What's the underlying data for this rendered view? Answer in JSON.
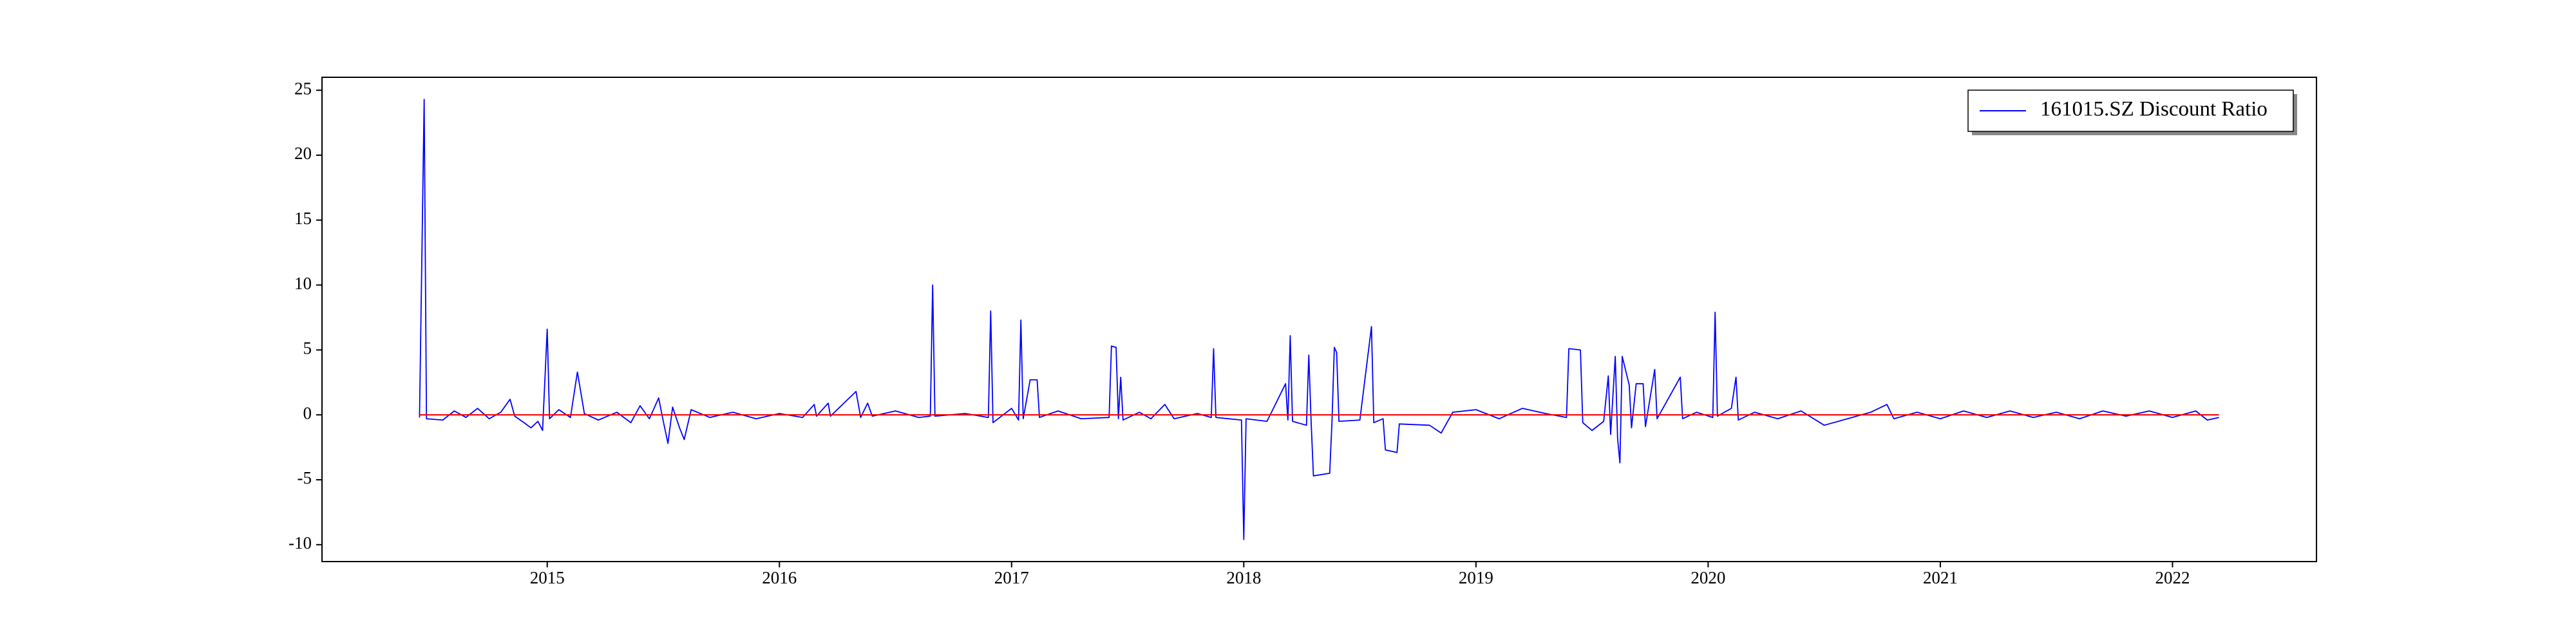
{
  "chart_data": {
    "type": "line",
    "x": [
      2014.45,
      2014.47,
      2014.48,
      2014.55,
      2014.6,
      2014.65,
      2014.7,
      2014.75,
      2014.8,
      2014.84,
      2014.86,
      2014.9,
      2014.93,
      2014.96,
      2014.98,
      2015.0,
      2015.01,
      2015.05,
      2015.1,
      2015.13,
      2015.16,
      2015.22,
      2015.3,
      2015.36,
      2015.4,
      2015.44,
      2015.48,
      2015.5,
      2015.52,
      2015.54,
      2015.57,
      2015.59,
      2015.62,
      2015.7,
      2015.8,
      2015.9,
      2016.0,
      2016.1,
      2016.15,
      2016.16,
      2016.21,
      2016.22,
      2016.33,
      2016.35,
      2016.38,
      2016.4,
      2016.5,
      2016.6,
      2016.65,
      2016.66,
      2016.67,
      2016.8,
      2016.9,
      2016.91,
      2016.92,
      2017.0,
      2017.03,
      2017.04,
      2017.05,
      2017.08,
      2017.11,
      2017.12,
      2017.2,
      2017.3,
      2017.42,
      2017.43,
      2017.45,
      2017.46,
      2017.47,
      2017.48,
      2017.55,
      2017.6,
      2017.66,
      2017.7,
      2017.8,
      2017.86,
      2017.87,
      2017.88,
      2017.99,
      2018.0,
      2018.01,
      2018.1,
      2018.18,
      2018.19,
      2018.2,
      2018.21,
      2018.27,
      2018.28,
      2018.29,
      2018.3,
      2018.37,
      2018.38,
      2018.39,
      2018.4,
      2018.41,
      2018.5,
      2018.55,
      2018.56,
      2018.6,
      2018.61,
      2018.66,
      2018.67,
      2018.8,
      2018.85,
      2018.9,
      2019.0,
      2019.1,
      2019.2,
      2019.3,
      2019.39,
      2019.4,
      2019.45,
      2019.46,
      2019.5,
      2019.55,
      2019.57,
      2019.58,
      2019.6,
      2019.61,
      2019.62,
      2019.63,
      2019.66,
      2019.67,
      2019.69,
      2019.72,
      2019.73,
      2019.77,
      2019.78,
      2019.88,
      2019.89,
      2019.95,
      2020.02,
      2020.03,
      2020.04,
      2020.1,
      2020.12,
      2020.13,
      2020.2,
      2020.3,
      2020.4,
      2020.5,
      2020.6,
      2020.7,
      2020.77,
      2020.8,
      2020.9,
      2021.0,
      2021.1,
      2021.2,
      2021.3,
      2021.4,
      2021.5,
      2021.6,
      2021.7,
      2021.8,
      2021.9,
      2022.0,
      2022.1,
      2022.15,
      2022.2
    ],
    "series": [
      {
        "name": "161015.SZ Discount Ratio",
        "color": "#0000ff",
        "values": [
          -0.2,
          24.3,
          -0.3,
          -0.4,
          0.3,
          -0.2,
          0.5,
          -0.3,
          0.2,
          1.2,
          -0.1,
          -0.6,
          -1.0,
          -0.5,
          -1.2,
          6.6,
          -0.3,
          0.4,
          -0.2,
          3.3,
          0.1,
          -0.4,
          0.2,
          -0.6,
          0.7,
          -0.3,
          1.3,
          -0.5,
          -2.2,
          0.6,
          -1.0,
          -1.9,
          0.4,
          -0.2,
          0.2,
          -0.3,
          0.1,
          -0.2,
          0.8,
          -0.1,
          0.9,
          -0.1,
          1.8,
          -0.2,
          0.9,
          -0.1,
          0.3,
          -0.2,
          -0.1,
          10.0,
          -0.1,
          0.1,
          -0.2,
          8.0,
          -0.6,
          0.5,
          -0.4,
          7.3,
          -0.3,
          2.7,
          2.7,
          -0.2,
          0.3,
          -0.3,
          -0.2,
          5.3,
          5.2,
          -0.3,
          2.9,
          -0.4,
          0.2,
          -0.3,
          0.8,
          -0.3,
          0.1,
          -0.2,
          5.1,
          -0.2,
          -0.4,
          -9.6,
          -0.3,
          -0.5,
          2.4,
          -0.4,
          6.1,
          -0.5,
          -0.8,
          4.6,
          -0.5,
          -4.7,
          -4.5,
          -0.5,
          5.2,
          4.8,
          -0.5,
          -0.4,
          6.8,
          -0.6,
          -0.3,
          -2.7,
          -2.9,
          -0.7,
          -0.8,
          -1.4,
          0.2,
          0.4,
          -0.3,
          0.5,
          0.1,
          -0.2,
          5.1,
          5.0,
          -0.6,
          -1.2,
          -0.5,
          3.0,
          -1.5,
          4.5,
          -1.8,
          -3.7,
          4.5,
          2.3,
          -1.0,
          2.4,
          2.4,
          -0.9,
          3.5,
          -0.3,
          2.9,
          -0.3,
          0.2,
          -0.2,
          7.9,
          -0.1,
          0.5,
          2.9,
          -0.4,
          0.2,
          -0.3,
          0.3,
          -0.8,
          -0.3,
          0.2,
          0.8,
          -0.3,
          0.2,
          -0.3,
          0.3,
          -0.2,
          0.3,
          -0.2,
          0.2,
          -0.3,
          0.3,
          -0.1,
          0.3,
          -0.2,
          0.3,
          -0.4,
          -0.2
        ]
      },
      {
        "color": "#ff0000",
        "x": [
          2014.45,
          2022.2
        ],
        "values": [
          0,
          0
        ]
      }
    ],
    "xlim": [
      2014.03,
      2022.62
    ],
    "xticks": [
      2015,
      2016,
      2017,
      2018,
      2019,
      2020,
      2021,
      2022
    ],
    "ylim": [
      -11.3,
      26.0
    ],
    "yticks": [
      -10,
      -5,
      0,
      5,
      10,
      15,
      20,
      25
    ],
    "legend": "upper right"
  }
}
